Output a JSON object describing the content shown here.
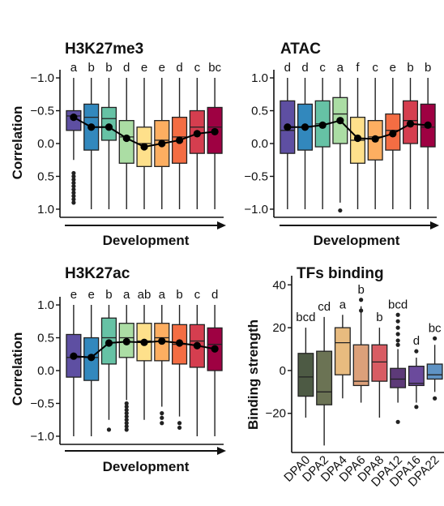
{
  "development_label": "Development",
  "chart_data": [
    {
      "type": "box",
      "title": "H3K27me3",
      "ylabel": "Correlation",
      "xlabel": "Development",
      "y_reversed": true,
      "yticks": [
        -1.0,
        -0.5,
        0.0,
        0.5,
        1.0
      ],
      "ytick_labels": [
        "−1.0",
        "−0.5",
        "0.0",
        "0.5",
        "1.0"
      ],
      "ylim": [
        -1.05,
        1.05
      ],
      "colors": [
        "#5e4fa2",
        "#3288bd",
        "#66c2a5",
        "#abdda4",
        "#fee08b",
        "#fdae61",
        "#f46d43",
        "#d53e4f",
        "#9e0142"
      ],
      "boxes": [
        {
          "q1": -0.5,
          "median": -0.42,
          "q3": -0.2,
          "whisker_low": -1.0,
          "whisker_high": 0.25,
          "mean": -0.4,
          "letter": "a",
          "outliers": [
            0.45,
            0.5,
            0.55,
            0.6,
            0.65,
            0.7,
            0.75,
            0.8,
            0.85,
            0.9
          ]
        },
        {
          "q1": -0.6,
          "median": -0.4,
          "q3": 0.1,
          "whisker_low": -1.0,
          "whisker_high": 1.0,
          "mean": -0.25,
          "letter": "b",
          "outliers": []
        },
        {
          "q1": -0.55,
          "median": -0.38,
          "q3": -0.05,
          "whisker_low": -1.0,
          "whisker_high": 1.0,
          "mean": -0.25,
          "letter": "b",
          "outliers": []
        },
        {
          "q1": -0.35,
          "median": -0.1,
          "q3": 0.3,
          "whisker_low": -1.0,
          "whisker_high": 1.0,
          "mean": -0.08,
          "letter": "d",
          "outliers": []
        },
        {
          "q1": -0.25,
          "median": 0.0,
          "q3": 0.35,
          "whisker_low": -1.0,
          "whisker_high": 1.0,
          "mean": 0.05,
          "letter": "e",
          "outliers": []
        },
        {
          "q1": -0.35,
          "median": -0.05,
          "q3": 0.35,
          "whisker_low": -1.0,
          "whisker_high": 1.0,
          "mean": 0.0,
          "letter": "e",
          "outliers": []
        },
        {
          "q1": -0.4,
          "median": -0.1,
          "q3": 0.3,
          "whisker_low": -1.0,
          "whisker_high": 1.0,
          "mean": -0.05,
          "letter": "d",
          "outliers": []
        },
        {
          "q1": -0.5,
          "median": -0.25,
          "q3": 0.15,
          "whisker_low": -1.0,
          "whisker_high": 1.0,
          "mean": -0.15,
          "letter": "c",
          "outliers": []
        },
        {
          "q1": -0.55,
          "median": -0.25,
          "q3": 0.15,
          "whisker_low": -1.0,
          "whisker_high": 1.0,
          "mean": -0.18,
          "letter": "bc",
          "outliers": []
        }
      ]
    },
    {
      "type": "box",
      "title": "ATAC",
      "ylabel": "",
      "xlabel": "Development",
      "y_reversed": false,
      "yticks": [
        -1.0,
        -0.5,
        0.0,
        0.5,
        1.0
      ],
      "ytick_labels": [
        "−1.0",
        "−0.5",
        "0.0",
        "0.5",
        "1.0"
      ],
      "ylim": [
        -1.05,
        1.05
      ],
      "colors": [
        "#5e4fa2",
        "#3288bd",
        "#66c2a5",
        "#abdda4",
        "#fee08b",
        "#fdae61",
        "#f46d43",
        "#d53e4f",
        "#9e0142"
      ],
      "boxes": [
        {
          "q1": -0.15,
          "median": 0.2,
          "q3": 0.65,
          "whisker_low": -1.0,
          "whisker_high": 1.0,
          "mean": 0.25,
          "letter": "d",
          "outliers": []
        },
        {
          "q1": -0.1,
          "median": 0.25,
          "q3": 0.6,
          "whisker_low": -1.0,
          "whisker_high": 1.0,
          "mean": 0.25,
          "letter": "d",
          "outliers": []
        },
        {
          "q1": -0.05,
          "median": 0.3,
          "q3": 0.65,
          "whisker_low": -1.0,
          "whisker_high": 1.0,
          "mean": 0.28,
          "letter": "c",
          "outliers": []
        },
        {
          "q1": 0.0,
          "median": 0.45,
          "q3": 0.7,
          "whisker_low": -0.9,
          "whisker_high": 1.0,
          "mean": 0.35,
          "letter": "a",
          "outliers": [
            -1.02
          ]
        },
        {
          "q1": -0.3,
          "median": 0.05,
          "q3": 0.4,
          "whisker_low": -1.0,
          "whisker_high": 1.0,
          "mean": 0.08,
          "letter": "f",
          "outliers": []
        },
        {
          "q1": -0.25,
          "median": 0.1,
          "q3": 0.35,
          "whisker_low": -1.0,
          "whisker_high": 1.0,
          "mean": 0.07,
          "letter": "c",
          "outliers": []
        },
        {
          "q1": -0.1,
          "median": 0.2,
          "q3": 0.45,
          "whisker_low": -1.0,
          "whisker_high": 1.0,
          "mean": 0.15,
          "letter": "e",
          "outliers": []
        },
        {
          "q1": 0.0,
          "median": 0.35,
          "q3": 0.65,
          "whisker_low": -1.0,
          "whisker_high": 1.0,
          "mean": 0.3,
          "letter": "b",
          "outliers": []
        },
        {
          "q1": -0.05,
          "median": 0.25,
          "q3": 0.6,
          "whisker_low": -1.0,
          "whisker_high": 1.0,
          "mean": 0.28,
          "letter": "b",
          "outliers": []
        }
      ]
    },
    {
      "type": "box",
      "title": "H3K27ac",
      "ylabel": "Correlation",
      "xlabel": "Development",
      "y_reversed": false,
      "yticks": [
        -1.0,
        -0.5,
        0.0,
        0.5,
        1.0
      ],
      "ytick_labels": [
        "−1.0",
        "−0.5",
        "0.0",
        "0.5",
        "1.0"
      ],
      "ylim": [
        -1.05,
        1.05
      ],
      "colors": [
        "#5e4fa2",
        "#3288bd",
        "#66c2a5",
        "#abdda4",
        "#fee08b",
        "#fdae61",
        "#f46d43",
        "#d53e4f",
        "#9e0142"
      ],
      "boxes": [
        {
          "q1": -0.1,
          "median": 0.2,
          "q3": 0.55,
          "whisker_low": -1.0,
          "whisker_high": 1.0,
          "mean": 0.22,
          "letter": "e",
          "outliers": []
        },
        {
          "q1": -0.15,
          "median": 0.2,
          "q3": 0.5,
          "whisker_low": -1.0,
          "whisker_high": 1.0,
          "mean": 0.2,
          "letter": "e",
          "outliers": []
        },
        {
          "q1": 0.1,
          "median": 0.5,
          "q3": 0.8,
          "whisker_low": -0.75,
          "whisker_high": 1.0,
          "mean": 0.42,
          "letter": "b",
          "outliers": [
            -0.9
          ]
        },
        {
          "q1": 0.2,
          "median": 0.5,
          "q3": 0.72,
          "whisker_low": -0.45,
          "whisker_high": 1.0,
          "mean": 0.44,
          "letter": "a",
          "outliers": [
            -0.5,
            -0.55,
            -0.6,
            -0.65,
            -0.7,
            -0.75,
            -0.8,
            -0.85,
            -0.9
          ]
        },
        {
          "q1": 0.15,
          "median": 0.45,
          "q3": 0.72,
          "whisker_low": -0.75,
          "whisker_high": 1.0,
          "mean": 0.43,
          "letter": "ab",
          "outliers": []
        },
        {
          "q1": 0.15,
          "median": 0.5,
          "q3": 0.72,
          "whisker_low": -0.55,
          "whisker_high": 1.0,
          "mean": 0.45,
          "letter": "a",
          "outliers": [
            -0.65,
            -0.72,
            -0.8
          ]
        },
        {
          "q1": 0.1,
          "median": 0.4,
          "q3": 0.7,
          "whisker_low": -0.7,
          "whisker_high": 1.0,
          "mean": 0.42,
          "letter": "b",
          "outliers": [
            -0.8,
            -0.87
          ]
        },
        {
          "q1": 0.05,
          "median": 0.45,
          "q3": 0.7,
          "whisker_low": -1.0,
          "whisker_high": 1.0,
          "mean": 0.38,
          "letter": "c",
          "outliers": []
        },
        {
          "q1": 0.0,
          "median": 0.4,
          "q3": 0.65,
          "whisker_low": -1.0,
          "whisker_high": 1.0,
          "mean": 0.33,
          "letter": "d",
          "outliers": []
        }
      ]
    },
    {
      "type": "box",
      "title": "TFs binding",
      "ylabel": "Binding strength",
      "y_reversed": false,
      "yticks": [
        -20,
        0,
        20,
        40
      ],
      "ytick_labels": [
        "−20",
        "0",
        "20",
        "40"
      ],
      "ylim": [
        -36,
        42
      ],
      "categories": [
        "DPA0",
        "DPA2",
        "DPA4",
        "DPA6",
        "DPA8",
        "DPA12",
        "DPA16",
        "DPA22"
      ],
      "colors": [
        "#4d5a44",
        "#6b7354",
        "#e8bb7f",
        "#dca07a",
        "#d85c63",
        "#5d3a78",
        "#6b4a9c",
        "#5f93c4"
      ],
      "boxes": [
        {
          "q1": -12,
          "median": -3,
          "q3": 8,
          "whisker_low": -22,
          "whisker_high": 20,
          "letter": "bcd",
          "outliers": []
        },
        {
          "q1": -16,
          "median": -10,
          "q3": 9,
          "whisker_low": -35,
          "whisker_high": 25,
          "letter": "cd",
          "outliers": []
        },
        {
          "q1": -2,
          "median": 13,
          "q3": 20,
          "whisker_low": -13,
          "whisker_high": 26,
          "letter": "a",
          "outliers": []
        },
        {
          "q1": -7,
          "median": -5,
          "q3": 12,
          "whisker_low": -15,
          "whisker_high": 30,
          "letter": "b",
          "outliers": [
            33,
            28
          ]
        },
        {
          "q1": -5,
          "median": 4,
          "q3": 12,
          "whisker_low": -22,
          "whisker_high": 20,
          "letter": "b",
          "outliers": []
        },
        {
          "q1": -8,
          "median": -4,
          "q3": 1,
          "whisker_low": -15,
          "whisker_high": 10,
          "letter": "bcd",
          "outliers": [
            -24,
            12,
            14,
            17,
            20,
            23,
            26
          ]
        },
        {
          "q1": -7,
          "median": -6,
          "q3": 2,
          "whisker_low": -15,
          "whisker_high": 6,
          "letter": "d",
          "outliers": [
            -17,
            9
          ]
        },
        {
          "q1": -4,
          "median": -2,
          "q3": 3,
          "whisker_low": -10,
          "whisker_high": 12,
          "letter": "bc",
          "outliers": [
            -13,
            15
          ]
        }
      ]
    }
  ]
}
